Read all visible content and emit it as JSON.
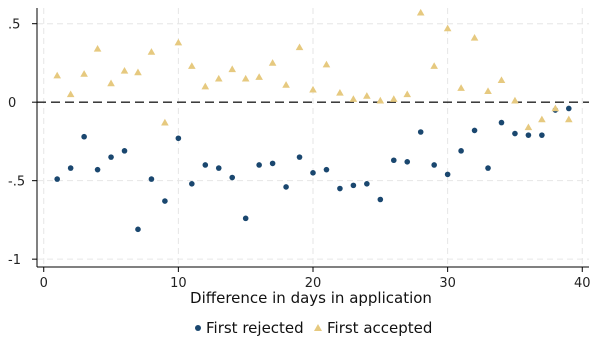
{
  "chart_data": {
    "type": "scatter",
    "title": "",
    "xlabel": "Difference in days in application",
    "ylabel": "",
    "xlim": [
      -0.5,
      40.5
    ],
    "ylim": [
      -1.05,
      0.6
    ],
    "x_ticks": [
      0,
      10,
      20,
      30,
      40
    ],
    "x_tick_labels": [
      "0",
      "10",
      "20",
      "30",
      "40"
    ],
    "y_ticks": [
      0.5,
      0,
      -0.5,
      -1
    ],
    "y_tick_labels": [
      ".5",
      "0",
      "-.5",
      "-1"
    ],
    "grid": true,
    "reference_line": {
      "y": 0,
      "style": "dashed"
    },
    "legend_position": "bottom",
    "series": [
      {
        "name": "First rejected",
        "marker": "circle",
        "color": "#1a476f",
        "x": [
          1,
          2,
          3,
          4,
          5,
          6,
          7,
          8,
          9,
          10,
          11,
          12,
          13,
          14,
          15,
          16,
          17,
          18,
          19,
          20,
          21,
          22,
          23,
          24,
          25,
          26,
          27,
          28,
          29,
          30,
          31,
          32,
          33,
          34,
          35,
          36,
          37,
          38,
          39
        ],
        "y": [
          -0.49,
          -0.42,
          -0.22,
          -0.43,
          -0.35,
          -0.31,
          -0.81,
          -0.49,
          -0.63,
          -0.23,
          -0.52,
          -0.4,
          -0.42,
          -0.48,
          -0.74,
          -0.4,
          -0.39,
          -0.54,
          -0.35,
          -0.45,
          -0.43,
          -0.55,
          -0.53,
          -0.52,
          -0.62,
          -0.37,
          -0.38,
          -0.19,
          -0.4,
          -0.46,
          -0.31,
          -0.18,
          -0.42,
          -0.13,
          -0.2,
          -0.21,
          -0.21,
          -0.05,
          -0.04
        ]
      },
      {
        "name": "First accepted",
        "marker": "triangle",
        "color": "#e6c97f",
        "x": [
          1,
          2,
          3,
          4,
          5,
          6,
          7,
          8,
          9,
          10,
          11,
          12,
          13,
          14,
          15,
          16,
          17,
          18,
          19,
          20,
          21,
          22,
          23,
          24,
          25,
          26,
          27,
          28,
          29,
          30,
          31,
          32,
          33,
          34,
          35,
          36,
          37,
          38,
          39
        ],
        "y": [
          0.17,
          0.05,
          0.18,
          0.34,
          0.12,
          0.2,
          0.19,
          0.32,
          -0.13,
          0.38,
          0.23,
          0.1,
          0.15,
          0.21,
          0.15,
          0.16,
          0.25,
          0.11,
          0.35,
          0.08,
          0.24,
          0.06,
          0.02,
          0.04,
          0.01,
          0.02,
          0.05,
          0.57,
          0.23,
          0.47,
          0.09,
          0.41,
          0.07,
          0.14,
          0.01,
          -0.16,
          -0.11,
          -0.04,
          -0.11
        ]
      }
    ]
  }
}
